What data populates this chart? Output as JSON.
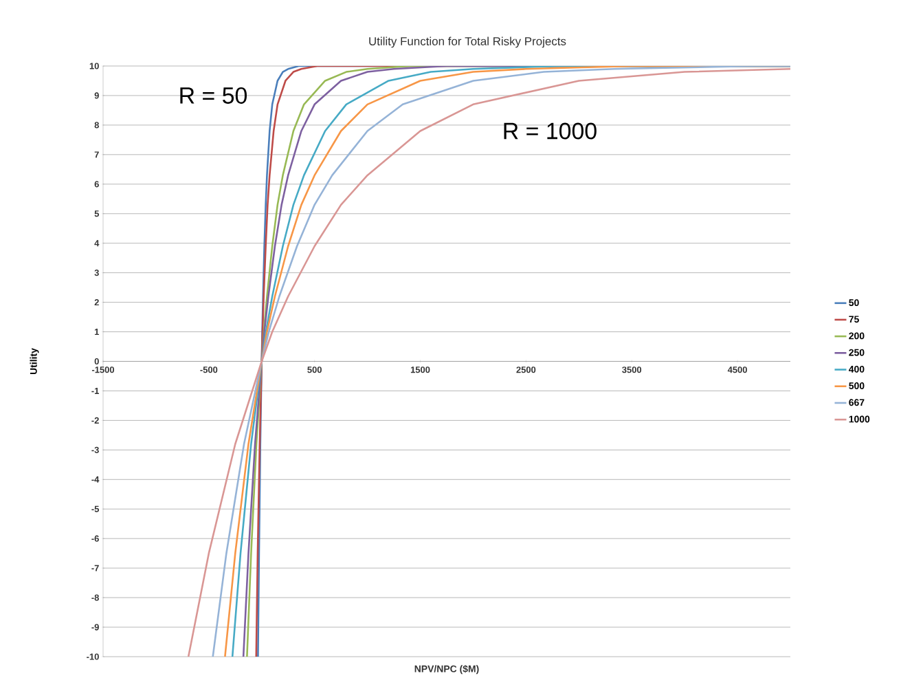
{
  "chart_data": {
    "type": "line",
    "title": "Utility Function for Total Risky Projects",
    "xlabel": "NPV/NPC ($M)",
    "ylabel": "Utility",
    "xlim": [
      -1500,
      5000
    ],
    "ylim": [
      -10,
      10
    ],
    "xticks": [
      -1500,
      -500,
      500,
      1500,
      2500,
      3500,
      4500
    ],
    "yticks": [
      -10,
      -9,
      -8,
      -7,
      -6,
      -5,
      -4,
      -3,
      -2,
      -1,
      0,
      1,
      2,
      3,
      4,
      5,
      6,
      7,
      8,
      9,
      10
    ],
    "grid": "y",
    "legend": "right",
    "marker": "none",
    "line_style": "solid",
    "annotations": [
      "R = 50",
      "R = 1000"
    ],
    "series": [
      {
        "name": "50",
        "color": "#4a7ebb",
        "x": [
          -35,
          -25,
          -13,
          0,
          5,
          13,
          25,
          38,
          50,
          75,
          100,
          150,
          200,
          250,
          350,
          5000
        ],
        "values": [
          -10,
          -6.5,
          -2.8,
          0,
          1.0,
          2.2,
          3.9,
          5.3,
          6.3,
          7.8,
          8.7,
          9.5,
          9.8,
          9.9,
          10.0,
          10.0
        ]
      },
      {
        "name": "75",
        "color": "#be4b48",
        "x": [
          -52,
          -38,
          -19,
          0,
          8,
          19,
          38,
          56,
          75,
          113,
          150,
          225,
          300,
          375,
          525,
          5000
        ],
        "values": [
          -10,
          -6.5,
          -2.8,
          0,
          1.0,
          2.2,
          3.9,
          5.3,
          6.3,
          7.8,
          8.7,
          9.5,
          9.8,
          9.9,
          10.0,
          10.0
        ]
      },
      {
        "name": "200",
        "color": "#98b954",
        "x": [
          -139,
          -100,
          -50,
          0,
          20,
          50,
          100,
          150,
          200,
          300,
          400,
          600,
          800,
          1000,
          1400,
          5000
        ],
        "values": [
          -10,
          -6.5,
          -2.8,
          0,
          1.0,
          2.2,
          3.9,
          5.3,
          6.3,
          7.8,
          8.7,
          9.5,
          9.8,
          9.9,
          10.0,
          10.0
        ]
      },
      {
        "name": "250",
        "color": "#7d60a0",
        "x": [
          -173,
          -125,
          -63,
          0,
          25,
          63,
          125,
          188,
          250,
          375,
          500,
          750,
          1000,
          1250,
          1750,
          5000
        ],
        "values": [
          -10,
          -6.5,
          -2.8,
          0,
          1.0,
          2.2,
          3.9,
          5.3,
          6.3,
          7.8,
          8.7,
          9.5,
          9.8,
          9.9,
          10.0,
          10.0
        ]
      },
      {
        "name": "400",
        "color": "#46aac5",
        "x": [
          -277,
          -200,
          -100,
          0,
          40,
          100,
          200,
          300,
          400,
          600,
          800,
          1200,
          1600,
          2000,
          2800,
          5000
        ],
        "values": [
          -10,
          -6.5,
          -2.8,
          0,
          1.0,
          2.2,
          3.9,
          5.3,
          6.3,
          7.8,
          8.7,
          9.5,
          9.8,
          9.9,
          10.0,
          10.0
        ]
      },
      {
        "name": "500",
        "color": "#f79646",
        "x": [
          -347,
          -250,
          -125,
          0,
          50,
          125,
          250,
          375,
          500,
          750,
          1000,
          1500,
          2000,
          2500,
          3500,
          5000
        ],
        "values": [
          -10,
          -6.5,
          -2.8,
          0,
          1.0,
          2.2,
          3.9,
          5.3,
          6.3,
          7.8,
          8.7,
          9.5,
          9.8,
          9.9,
          10.0,
          10.0
        ]
      },
      {
        "name": "667",
        "color": "#95b3d7",
        "x": [
          -462,
          -334,
          -167,
          0,
          67,
          167,
          334,
          500,
          667,
          1000,
          1334,
          2001,
          2668,
          3335,
          4669,
          5000
        ],
        "values": [
          -10,
          -6.5,
          -2.8,
          0,
          1.0,
          2.2,
          3.9,
          5.3,
          6.3,
          7.8,
          8.7,
          9.5,
          9.8,
          9.9,
          10.0,
          10.0
        ]
      },
      {
        "name": "1000",
        "color": "#d99694",
        "x": [
          -693,
          -500,
          -250,
          0,
          100,
          250,
          500,
          750,
          1000,
          1500,
          2000,
          3000,
          4000,
          5000
        ],
        "values": [
          -10,
          -6.5,
          -2.8,
          0,
          1.0,
          2.2,
          3.9,
          5.3,
          6.3,
          7.8,
          8.7,
          9.5,
          9.8,
          9.9
        ]
      }
    ]
  }
}
